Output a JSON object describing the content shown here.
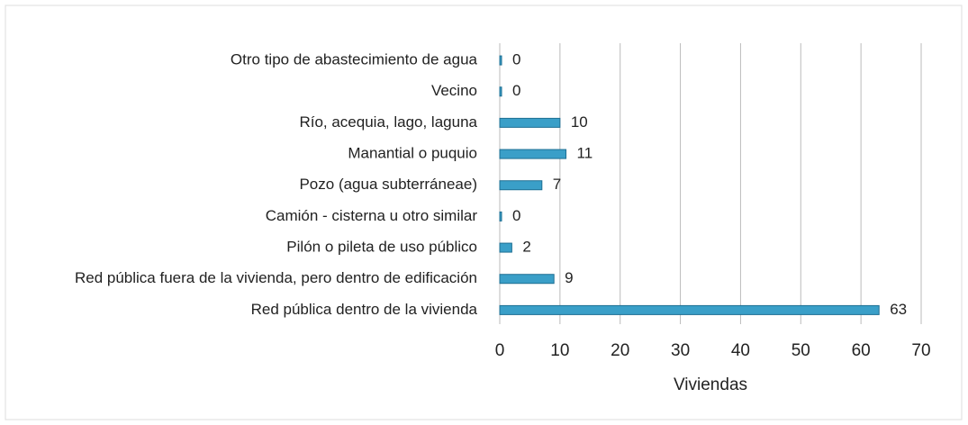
{
  "chart_data": {
    "type": "bar",
    "orientation": "horizontal",
    "categories": [
      "Otro tipo de abastecimiento de agua",
      "Vecino",
      "Río, acequia, lago, laguna",
      "Manantial o puquio",
      "Pozo (agua subterráneae)",
      "Camión - cisterna u otro similar",
      "Pilón o pileta de uso público",
      "Red pública fuera de la vivienda, pero dentro de edificación",
      "Red pública dentro de la vivienda"
    ],
    "values": [
      0,
      0,
      10,
      11,
      7,
      0,
      2,
      9,
      63
    ],
    "color": "#3a9fc8",
    "xlabel": "Viviendas",
    "xlim": [
      0,
      70
    ],
    "xticks": [
      0,
      10,
      20,
      30,
      40,
      50,
      60,
      70
    ],
    "grid": true
  }
}
